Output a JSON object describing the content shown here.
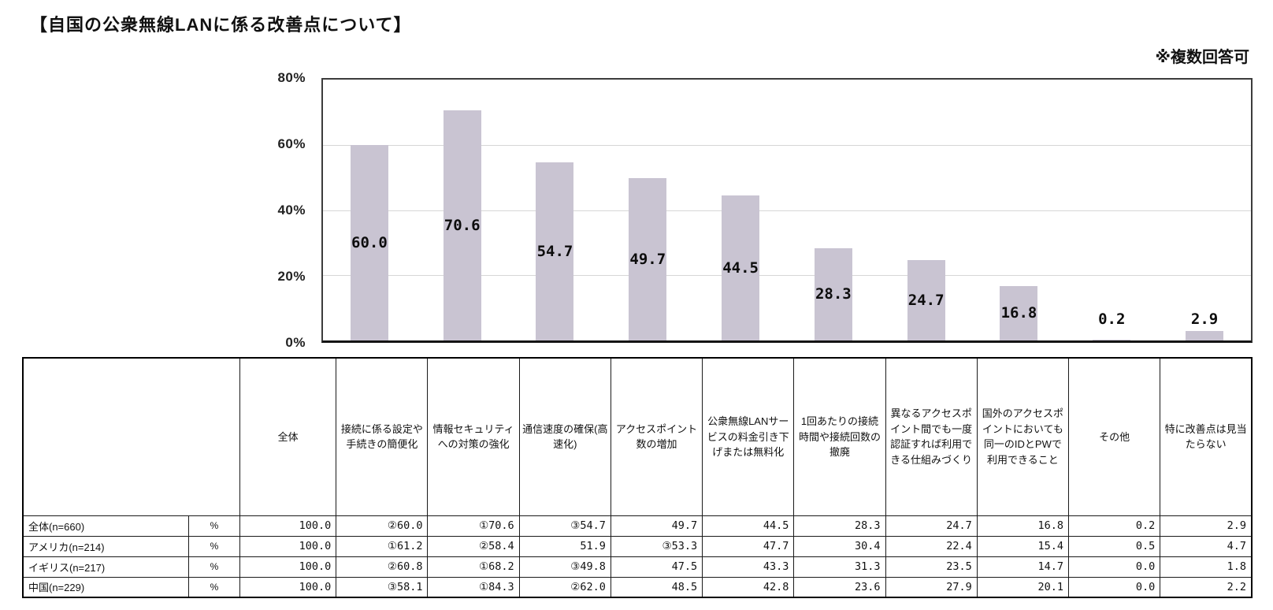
{
  "title": "【自国の公衆無線LANに係る改善点について】",
  "note": "※複数回答可",
  "chart_data": {
    "type": "bar",
    "title": "自国の公衆無線LANに係る改善点について",
    "categories": [
      "接続に係る設定や手続きの簡便化",
      "情報セキュリティへの対策の強化",
      "通信速度の確保(高速化)",
      "アクセスポイント数の増加",
      "公衆無線LANサービスの料金引き下げまたは無料化",
      "1回あたりの接続時間や接続回数の撤廃",
      "異なるアクセスポイント間でも一度認証すれば利用できる仕組みづくり",
      "国外のアクセスポイントにおいても同一のIDとPWで利用できること",
      "その他",
      "特に改善点は見当たらない"
    ],
    "values": [
      60.0,
      70.6,
      54.7,
      49.7,
      44.5,
      28.3,
      24.7,
      16.8,
      0.2,
      2.9
    ],
    "value_labels": [
      "60.0",
      "70.6",
      "54.7",
      "49.7",
      "44.5",
      "28.3",
      "24.7",
      "16.8",
      "0.2",
      "2.9"
    ],
    "y_ticks": [
      "80%",
      "60%",
      "40%",
      "20%",
      "0%"
    ],
    "ylim": [
      0,
      80
    ],
    "xlabel": "",
    "ylabel": "",
    "grid": true,
    "legend": "none",
    "bar_color": "#c9c4d2",
    "gridline_color": "#d6d6d6"
  },
  "table": {
    "corner_label": "",
    "columns": [
      "全体",
      "接続に係る設定や手続きの簡便化",
      "情報セキュリティへの対策の強化",
      "通信速度の確保(高速化)",
      "アクセスポイント数の増加",
      "公衆無線LANサービスの料金引き下げまたは無料化",
      "1回あたりの接続時間や接続回数の撤廃",
      "異なるアクセスポイント間でも一度認証すれば利用できる仕組みづくり",
      "国外のアクセスポイントにおいても同一のIDとPWで利用できること",
      "その他",
      "特に改善点は見当たらない"
    ],
    "rows": [
      {
        "label": "全体(n=660)",
        "unit": "%",
        "values": [
          "100.0",
          "②60.0",
          "①70.6",
          "③54.7",
          "49.7",
          "44.5",
          "28.3",
          "24.7",
          "16.8",
          "0.2",
          "2.9"
        ]
      },
      {
        "label": "アメリカ(n=214)",
        "unit": "%",
        "values": [
          "100.0",
          "①61.2",
          "②58.4",
          "51.9",
          "③53.3",
          "47.7",
          "30.4",
          "22.4",
          "15.4",
          "0.5",
          "4.7"
        ]
      },
      {
        "label": "イギリス(n=217)",
        "unit": "%",
        "values": [
          "100.0",
          "②60.8",
          "①68.2",
          "③49.8",
          "47.5",
          "43.3",
          "31.3",
          "23.5",
          "14.7",
          "0.0",
          "1.8"
        ]
      },
      {
        "label": "中国(n=229)",
        "unit": "%",
        "values": [
          "100.0",
          "③58.1",
          "①84.3",
          "②62.0",
          "48.5",
          "42.8",
          "23.6",
          "27.9",
          "20.1",
          "0.0",
          "2.2"
        ]
      }
    ]
  }
}
